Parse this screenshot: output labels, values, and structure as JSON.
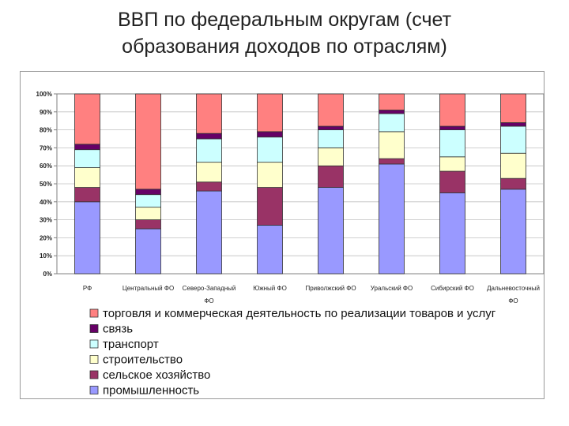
{
  "chart_data": {
    "type": "bar",
    "stacked": true,
    "title_line1": "ВВП по федеральным округам (счет",
    "title_line2": "образования доходов по отраслям)",
    "categories": [
      [
        "РФ"
      ],
      [
        "Центральный ФО"
      ],
      [
        "Северо-Западный",
        "ФО"
      ],
      [
        "Южный ФО"
      ],
      [
        "Приволжский ФО"
      ],
      [
        "Уральский ФО"
      ],
      [
        "Сибирский ФО"
      ],
      [
        "Дальневосточный",
        "ФО"
      ]
    ],
    "yticks": [
      "0%",
      "10%",
      "20%",
      "30%",
      "40%",
      "50%",
      "60%",
      "70%",
      "80%",
      "90%",
      "100%"
    ],
    "ylim": [
      0,
      100
    ],
    "grid": true,
    "legend_position": "bottom",
    "series": [
      {
        "name": "промышленность",
        "color": "#9999ff",
        "values": [
          40,
          25,
          46,
          27,
          48,
          61,
          45,
          47
        ]
      },
      {
        "name": "сельское хозяйство",
        "color": "#993366",
        "values": [
          8,
          5,
          5,
          21,
          12,
          3,
          12,
          6
        ]
      },
      {
        "name": "строительство",
        "color": "#ffffcc",
        "values": [
          11,
          7,
          11,
          14,
          10,
          15,
          8,
          14
        ]
      },
      {
        "name": "транспорт",
        "color": "#ccffff",
        "values": [
          10,
          7,
          13,
          14,
          10,
          10,
          15,
          15
        ]
      },
      {
        "name": "связь",
        "color": "#660066",
        "values": [
          3,
          3,
          3,
          3,
          2,
          2,
          2,
          2
        ]
      },
      {
        "name": "торговля и коммерческая деятельность по реализации товаров и услуг",
        "color": "#ff8080",
        "values": [
          28,
          53,
          22,
          21,
          18,
          9,
          18,
          16
        ]
      }
    ]
  }
}
